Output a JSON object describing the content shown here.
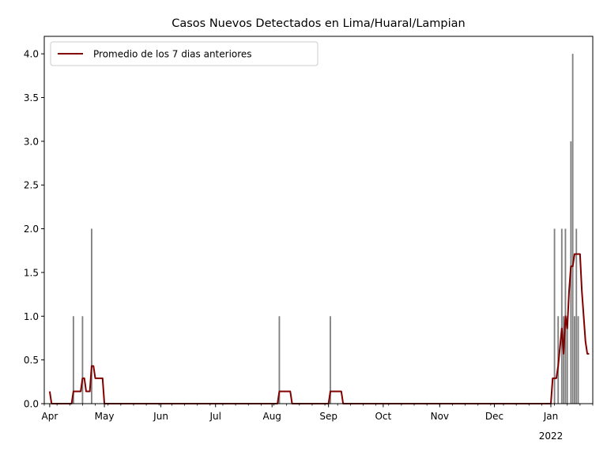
{
  "chart_data": {
    "type": "bar",
    "title": "Casos Nuevos Detectados en Lima/Huaral/Lampian",
    "xlabel": "",
    "ylabel": "",
    "ylim": [
      0,
      4.2
    ],
    "xlim": [
      "2021-03-29",
      "2022-01-24"
    ],
    "y_ticks": [
      "0.0",
      "0.5",
      "1.0",
      "1.5",
      "2.0",
      "2.5",
      "3.0",
      "3.5",
      "4.0"
    ],
    "x_ticks": [
      {
        "date": "2021-04-01",
        "label": "Apr"
      },
      {
        "date": "2021-05-01",
        "label": "May"
      },
      {
        "date": "2021-06-01",
        "label": "Jun"
      },
      {
        "date": "2021-07-01",
        "label": "Jul"
      },
      {
        "date": "2021-08-01",
        "label": "Aug"
      },
      {
        "date": "2021-09-01",
        "label": "Sep"
      },
      {
        "date": "2021-10-01",
        "label": "Oct"
      },
      {
        "date": "2021-11-01",
        "label": "Nov"
      },
      {
        "date": "2021-12-01",
        "label": "Dec"
      },
      {
        "date": "2022-01-01",
        "label": "Jan",
        "sublabel": "2022"
      }
    ],
    "bars": {
      "color": "#808080",
      "points": [
        {
          "date": "2021-04-14",
          "value": 1
        },
        {
          "date": "2021-04-19",
          "value": 1
        },
        {
          "date": "2021-04-24",
          "value": 2
        },
        {
          "date": "2021-08-05",
          "value": 1
        },
        {
          "date": "2021-09-02",
          "value": 1
        },
        {
          "date": "2022-01-03",
          "value": 2
        },
        {
          "date": "2022-01-05",
          "value": 1
        },
        {
          "date": "2022-01-07",
          "value": 2
        },
        {
          "date": "2022-01-08",
          "value": 1
        },
        {
          "date": "2022-01-09",
          "value": 2
        },
        {
          "date": "2022-01-10",
          "value": 1
        },
        {
          "date": "2022-01-12",
          "value": 3
        },
        {
          "date": "2022-01-13",
          "value": 4
        },
        {
          "date": "2022-01-14",
          "value": 1
        },
        {
          "date": "2022-01-15",
          "value": 2
        },
        {
          "date": "2022-01-16",
          "value": 1
        }
      ]
    },
    "series": [
      {
        "name": "Promedio de los 7 dias anteriores",
        "color": "#800000",
        "points": [
          {
            "date": "2021-04-01",
            "value": 0.14
          },
          {
            "date": "2021-04-02",
            "value": 0
          },
          {
            "date": "2021-04-13",
            "value": 0
          },
          {
            "date": "2021-04-14",
            "value": 0.14
          },
          {
            "date": "2021-04-18",
            "value": 0.14
          },
          {
            "date": "2021-04-19",
            "value": 0.29
          },
          {
            "date": "2021-04-20",
            "value": 0.29
          },
          {
            "date": "2021-04-21",
            "value": 0.14
          },
          {
            "date": "2021-04-23",
            "value": 0.14
          },
          {
            "date": "2021-04-24",
            "value": 0.43
          },
          {
            "date": "2021-04-25",
            "value": 0.43
          },
          {
            "date": "2021-04-26",
            "value": 0.29
          },
          {
            "date": "2021-04-30",
            "value": 0.29
          },
          {
            "date": "2021-05-01",
            "value": 0
          },
          {
            "date": "2021-08-04",
            "value": 0
          },
          {
            "date": "2021-08-05",
            "value": 0.14
          },
          {
            "date": "2021-08-11",
            "value": 0.14
          },
          {
            "date": "2021-08-12",
            "value": 0
          },
          {
            "date": "2021-09-01",
            "value": 0
          },
          {
            "date": "2021-09-02",
            "value": 0.14
          },
          {
            "date": "2021-09-08",
            "value": 0.14
          },
          {
            "date": "2021-09-09",
            "value": 0
          },
          {
            "date": "2022-01-01",
            "value": 0
          },
          {
            "date": "2022-01-02",
            "value": 0.29
          },
          {
            "date": "2022-01-04",
            "value": 0.29
          },
          {
            "date": "2022-01-05",
            "value": 0.43
          },
          {
            "date": "2022-01-07",
            "value": 0.86
          },
          {
            "date": "2022-01-08",
            "value": 0.57
          },
          {
            "date": "2022-01-09",
            "value": 1.0
          },
          {
            "date": "2022-01-10",
            "value": 0.86
          },
          {
            "date": "2022-01-11",
            "value": 1.29
          },
          {
            "date": "2022-01-12",
            "value": 1.57
          },
          {
            "date": "2022-01-13",
            "value": 1.57
          },
          {
            "date": "2022-01-14",
            "value": 1.71
          },
          {
            "date": "2022-01-17",
            "value": 1.71
          },
          {
            "date": "2022-01-18",
            "value": 1.29
          },
          {
            "date": "2022-01-20",
            "value": 0.71
          },
          {
            "date": "2022-01-21",
            "value": 0.57
          },
          {
            "date": "2022-01-22",
            "value": 0.57
          }
        ]
      }
    ],
    "legend": "top-left",
    "grid": false
  }
}
